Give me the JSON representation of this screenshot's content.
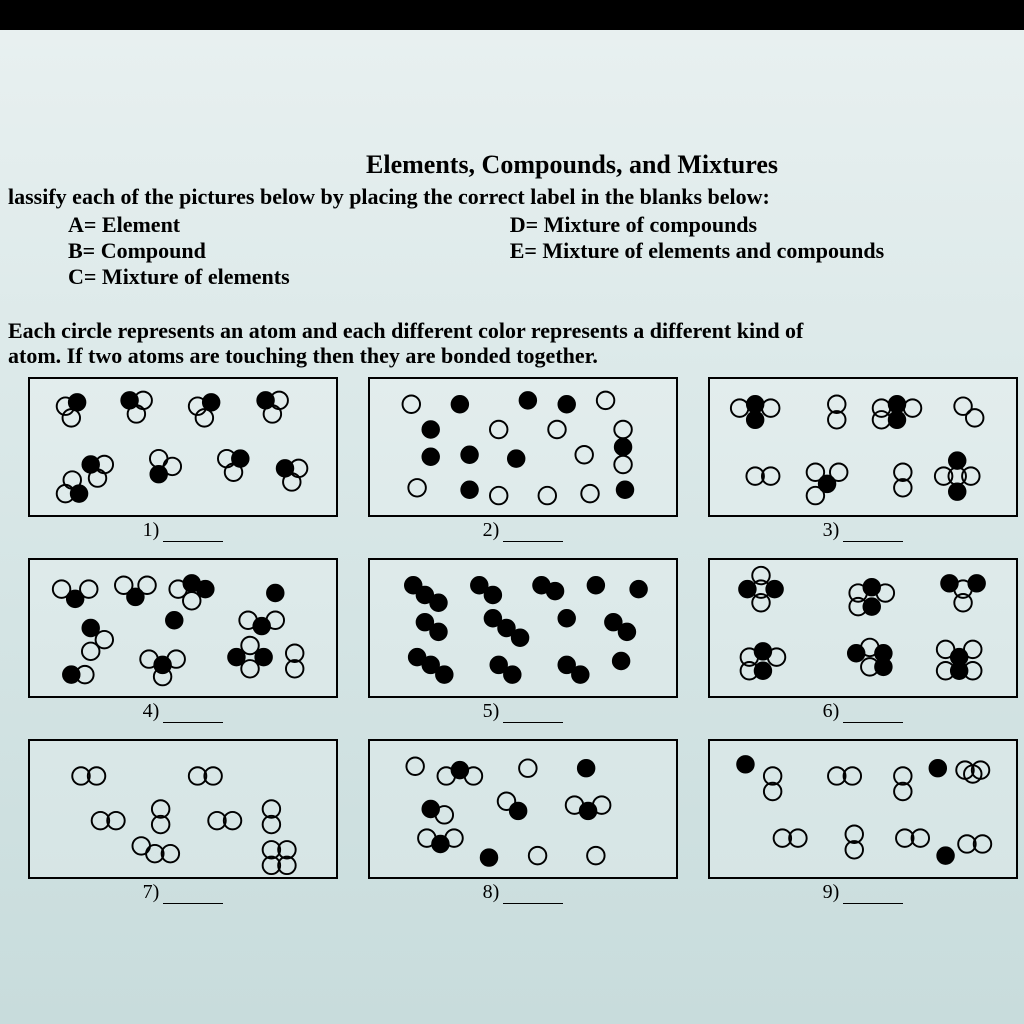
{
  "title": "Elements, Compounds, and Mixtures",
  "instruction": "lassify each of the pictures below by placing the correct label in the blanks below:",
  "legend": {
    "left": [
      "A= Element",
      "B= Compound",
      "C= Mixture of elements"
    ],
    "right": [
      "D= Mixture of compounds",
      "E= Mixture of elements and compounds"
    ]
  },
  "note_line1": "Each circle represents an atom and each different color represents a different kind of",
  "note_line2": "atom.  If two atoms are touching then they are bonded together.",
  "labels": [
    "1)",
    "2)",
    "3)",
    "4)",
    "5)",
    "6)",
    "7)",
    "8)",
    "9)"
  ],
  "colors": {
    "page_top": "#e8f0f0",
    "page_bottom": "#c8dcdc",
    "border": "#000000",
    "text": "#000000",
    "outer_bg": "#000000"
  },
  "atom_radius": 9,
  "diagrams": [
    [
      [
        [
          34,
          28,
          "o"
        ],
        [
          46,
          24,
          "f"
        ],
        [
          40,
          40,
          "o"
        ]
      ],
      [
        [
          100,
          22,
          "f"
        ],
        [
          114,
          22,
          "o"
        ],
        [
          107,
          36,
          "o"
        ]
      ],
      [
        [
          170,
          28,
          "o"
        ],
        [
          184,
          24,
          "f"
        ],
        [
          177,
          40,
          "o"
        ]
      ],
      [
        [
          240,
          22,
          "f"
        ],
        [
          254,
          22,
          "o"
        ],
        [
          247,
          36,
          "o"
        ]
      ],
      [
        [
          60,
          88,
          "f"
        ],
        [
          74,
          88,
          "o"
        ],
        [
          67,
          102,
          "o"
        ]
      ],
      [
        [
          130,
          82,
          "o"
        ],
        [
          130,
          98,
          "f"
        ],
        [
          144,
          90,
          "o"
        ]
      ],
      [
        [
          200,
          82,
          "o"
        ],
        [
          214,
          82,
          "f"
        ],
        [
          207,
          96,
          "o"
        ]
      ],
      [
        [
          34,
          118,
          "o"
        ],
        [
          48,
          118,
          "f"
        ],
        [
          41,
          104,
          "o"
        ]
      ],
      [
        [
          260,
          92,
          "f"
        ],
        [
          274,
          92,
          "o"
        ],
        [
          267,
          106,
          "o"
        ]
      ]
    ],
    [
      [
        [
          40,
          26,
          "o"
        ]
      ],
      [
        [
          90,
          26,
          "f"
        ]
      ],
      [
        [
          160,
          22,
          "f"
        ]
      ],
      [
        [
          200,
          26,
          "f"
        ]
      ],
      [
        [
          240,
          22,
          "o"
        ]
      ],
      [
        [
          60,
          52,
          "f"
        ]
      ],
      [
        [
          130,
          52,
          "o"
        ]
      ],
      [
        [
          190,
          52,
          "o"
        ]
      ],
      [
        [
          258,
          52,
          "o"
        ]
      ],
      [
        [
          60,
          80,
          "f"
        ]
      ],
      [
        [
          100,
          78,
          "f"
        ]
      ],
      [
        [
          148,
          82,
          "f"
        ]
      ],
      [
        [
          218,
          78,
          "o"
        ]
      ],
      [
        [
          258,
          70,
          "f"
        ]
      ],
      [
        [
          258,
          88,
          "o"
        ]
      ],
      [
        [
          46,
          112,
          "o"
        ]
      ],
      [
        [
          100,
          114,
          "f"
        ]
      ],
      [
        [
          130,
          120,
          "o"
        ]
      ],
      [
        [
          180,
          120,
          "o"
        ]
      ],
      [
        [
          224,
          118,
          "o"
        ]
      ],
      [
        [
          260,
          114,
          "f"
        ]
      ]
    ],
    [
      [
        [
          28,
          30,
          "o"
        ],
        [
          44,
          26,
          "f"
        ],
        [
          60,
          30,
          "o"
        ],
        [
          44,
          42,
          "f"
        ]
      ],
      [
        [
          128,
          26,
          "o"
        ],
        [
          128,
          42,
          "o"
        ]
      ],
      [
        [
          174,
          30,
          "o"
        ],
        [
          190,
          26,
          "f"
        ],
        [
          206,
          30,
          "o"
        ],
        [
          190,
          42,
          "f"
        ],
        [
          174,
          42,
          "o"
        ]
      ],
      [
        [
          258,
          28,
          "o"
        ],
        [
          270,
          40,
          "o"
        ]
      ],
      [
        [
          44,
          100,
          "o"
        ],
        [
          60,
          100,
          "o"
        ]
      ],
      [
        [
          106,
          96,
          "o"
        ],
        [
          118,
          108,
          "f"
        ],
        [
          106,
          120,
          "o"
        ],
        [
          130,
          96,
          "o"
        ]
      ],
      [
        [
          196,
          96,
          "o"
        ],
        [
          196,
          112,
          "o"
        ]
      ],
      [
        [
          252,
          84,
          "f"
        ],
        [
          252,
          100,
          "o"
        ],
        [
          252,
          116,
          "f"
        ],
        [
          238,
          100,
          "o"
        ],
        [
          266,
          100,
          "o"
        ]
      ]
    ],
    [
      [
        [
          30,
          30,
          "o"
        ],
        [
          44,
          40,
          "f"
        ],
        [
          58,
          30,
          "o"
        ]
      ],
      [
        [
          94,
          26,
          "o"
        ],
        [
          106,
          38,
          "f"
        ],
        [
          118,
          26,
          "o"
        ]
      ],
      [
        [
          150,
          30,
          "o"
        ],
        [
          164,
          24,
          "f"
        ],
        [
          178,
          30,
          "f"
        ],
        [
          164,
          42,
          "o"
        ]
      ],
      [
        [
          250,
          34,
          "f"
        ]
      ],
      [
        [
          60,
          70,
          "f"
        ],
        [
          74,
          82,
          "o"
        ],
        [
          60,
          94,
          "o"
        ]
      ],
      [
        [
          146,
          62,
          "f"
        ]
      ],
      [
        [
          222,
          62,
          "o"
        ],
        [
          236,
          68,
          "f"
        ],
        [
          250,
          62,
          "o"
        ]
      ],
      [
        [
          40,
          118,
          "f"
        ],
        [
          54,
          118,
          "o"
        ]
      ],
      [
        [
          120,
          102,
          "o"
        ],
        [
          134,
          108,
          "f"
        ],
        [
          148,
          102,
          "o"
        ],
        [
          134,
          120,
          "o"
        ]
      ],
      [
        [
          210,
          100,
          "f"
        ],
        [
          224,
          112,
          "o"
        ],
        [
          238,
          100,
          "f"
        ],
        [
          224,
          88,
          "o"
        ]
      ],
      [
        [
          270,
          96,
          "o"
        ],
        [
          270,
          112,
          "o"
        ]
      ]
    ],
    [
      [
        [
          42,
          26,
          "f"
        ],
        [
          54,
          36,
          "f"
        ],
        [
          68,
          44,
          "f"
        ]
      ],
      [
        [
          110,
          26,
          "f"
        ],
        [
          124,
          36,
          "f"
        ]
      ],
      [
        [
          174,
          26,
          "f"
        ],
        [
          188,
          32,
          "f"
        ]
      ],
      [
        [
          230,
          26,
          "f"
        ]
      ],
      [
        [
          274,
          30,
          "f"
        ]
      ],
      [
        [
          54,
          64,
          "f"
        ],
        [
          68,
          74,
          "f"
        ]
      ],
      [
        [
          124,
          60,
          "f"
        ],
        [
          138,
          70,
          "f"
        ],
        [
          152,
          80,
          "f"
        ]
      ],
      [
        [
          200,
          60,
          "f"
        ]
      ],
      [
        [
          248,
          64,
          "f"
        ],
        [
          262,
          74,
          "f"
        ]
      ],
      [
        [
          46,
          100,
          "f"
        ],
        [
          60,
          108,
          "f"
        ],
        [
          74,
          118,
          "f"
        ]
      ],
      [
        [
          130,
          108,
          "f"
        ],
        [
          144,
          118,
          "f"
        ]
      ],
      [
        [
          200,
          108,
          "f"
        ],
        [
          214,
          118,
          "f"
        ]
      ],
      [
        [
          256,
          104,
          "f"
        ]
      ]
    ],
    [
      [
        [
          36,
          30,
          "f"
        ],
        [
          50,
          30,
          "o"
        ],
        [
          64,
          30,
          "f"
        ],
        [
          50,
          44,
          "o"
        ],
        [
          50,
          16,
          "o"
        ]
      ],
      [
        [
          150,
          34,
          "o"
        ],
        [
          164,
          28,
          "f"
        ],
        [
          178,
          34,
          "o"
        ],
        [
          164,
          48,
          "f"
        ],
        [
          150,
          48,
          "o"
        ]
      ],
      [
        [
          244,
          24,
          "f"
        ],
        [
          258,
          30,
          "o"
        ],
        [
          272,
          24,
          "f"
        ],
        [
          258,
          44,
          "o"
        ]
      ],
      [
        [
          38,
          100,
          "o"
        ],
        [
          52,
          94,
          "f"
        ],
        [
          66,
          100,
          "o"
        ],
        [
          52,
          114,
          "f"
        ],
        [
          38,
          114,
          "o"
        ]
      ],
      [
        [
          148,
          96,
          "f"
        ],
        [
          162,
          90,
          "o"
        ],
        [
          176,
          96,
          "f"
        ],
        [
          162,
          110,
          "o"
        ],
        [
          176,
          110,
          "f"
        ]
      ],
      [
        [
          240,
          92,
          "o"
        ],
        [
          254,
          100,
          "f"
        ],
        [
          268,
          92,
          "o"
        ],
        [
          254,
          114,
          "f"
        ],
        [
          240,
          114,
          "o"
        ],
        [
          268,
          114,
          "o"
        ]
      ]
    ],
    [
      [
        [
          50,
          36,
          "o"
        ],
        [
          66,
          36,
          "o"
        ]
      ],
      [
        [
          170,
          36,
          "o"
        ],
        [
          186,
          36,
          "o"
        ]
      ],
      [
        [
          70,
          82,
          "o"
        ],
        [
          86,
          82,
          "o"
        ]
      ],
      [
        [
          132,
          70,
          "o"
        ],
        [
          132,
          86,
          "o"
        ]
      ],
      [
        [
          190,
          82,
          "o"
        ],
        [
          206,
          82,
          "o"
        ]
      ],
      [
        [
          246,
          70,
          "o"
        ],
        [
          246,
          86,
          "o"
        ]
      ],
      [
        [
          126,
          116,
          "o"
        ],
        [
          142,
          116,
          "o"
        ]
      ],
      [
        [
          246,
          112,
          "o"
        ],
        [
          262,
          112,
          "o"
        ]
      ],
      [
        [
          112,
          108,
          "o"
        ]
      ],
      [
        [
          246,
          128,
          "o"
        ],
        [
          262,
          128,
          "o"
        ]
      ]
    ],
    [
      [
        [
          44,
          26,
          "o"
        ]
      ],
      [
        [
          76,
          36,
          "o"
        ],
        [
          90,
          30,
          "f"
        ],
        [
          104,
          36,
          "o"
        ]
      ],
      [
        [
          160,
          28,
          "o"
        ]
      ],
      [
        [
          220,
          28,
          "f"
        ]
      ],
      [
        [
          60,
          70,
          "f"
        ],
        [
          74,
          76,
          "o"
        ]
      ],
      [
        [
          138,
          62,
          "o"
        ],
        [
          150,
          72,
          "f"
        ]
      ],
      [
        [
          208,
          66,
          "o"
        ],
        [
          222,
          72,
          "f"
        ],
        [
          236,
          66,
          "o"
        ]
      ],
      [
        [
          56,
          100,
          "o"
        ],
        [
          70,
          106,
          "f"
        ],
        [
          84,
          100,
          "o"
        ]
      ],
      [
        [
          120,
          120,
          "f"
        ]
      ],
      [
        [
          170,
          118,
          "o"
        ]
      ],
      [
        [
          230,
          118,
          "o"
        ]
      ]
    ],
    [
      [
        [
          34,
          24,
          "f"
        ]
      ],
      [
        [
          62,
          36,
          "o"
        ],
        [
          62,
          52,
          "o"
        ]
      ],
      [
        [
          128,
          36,
          "o"
        ],
        [
          144,
          36,
          "o"
        ]
      ],
      [
        [
          196,
          36,
          "o"
        ],
        [
          196,
          52,
          "o"
        ]
      ],
      [
        [
          232,
          28,
          "f"
        ]
      ],
      [
        [
          260,
          30,
          "o"
        ],
        [
          276,
          30,
          "o"
        ]
      ],
      [
        [
          72,
          100,
          "o"
        ],
        [
          88,
          100,
          "o"
        ]
      ],
      [
        [
          146,
          96,
          "o"
        ],
        [
          146,
          112,
          "o"
        ]
      ],
      [
        [
          198,
          100,
          "o"
        ],
        [
          214,
          100,
          "o"
        ]
      ],
      [
        [
          240,
          118,
          "f"
        ]
      ],
      [
        [
          262,
          106,
          "o"
        ],
        [
          278,
          106,
          "o"
        ]
      ],
      [
        [
          268,
          34,
          "o"
        ]
      ]
    ]
  ]
}
